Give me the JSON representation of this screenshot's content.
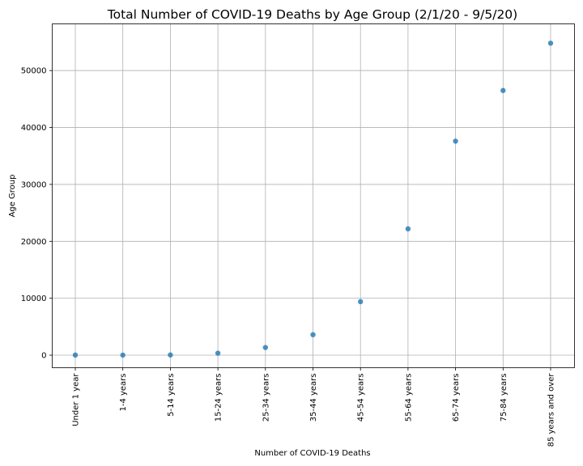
{
  "chart_data": {
    "type": "scatter",
    "title": "Total Number of COVID-19 Deaths by Age Group (2/1/20 - 9/5/20)",
    "xlabel": "Number of COVID-19 Deaths",
    "ylabel": "Age Group",
    "categories": [
      "Under 1 year",
      "1-4 years",
      "5-14 years",
      "15-24 years",
      "25-34 years",
      "35-44 years",
      "45-54 years",
      "55-64 years",
      "65-74 years",
      "75-84 years",
      "85 years and over"
    ],
    "values": [
      20,
      15,
      40,
      350,
      1350,
      3600,
      9400,
      22200,
      37600,
      46500,
      54800
    ],
    "yticks": [
      0,
      10000,
      20000,
      30000,
      40000,
      50000
    ],
    "ylim": [
      -2200,
      58200
    ],
    "grid": true,
    "colors": {
      "point": "#1f77b4"
    }
  }
}
